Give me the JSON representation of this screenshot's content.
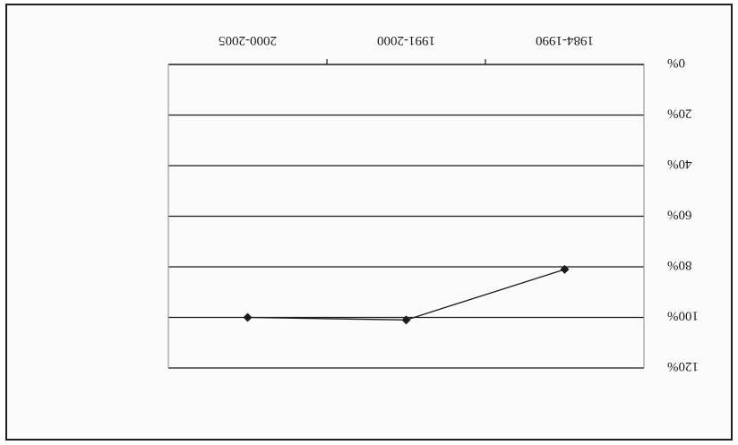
{
  "chart_data": {
    "type": "line",
    "categories": [
      "1984-1990",
      "1991-2000",
      "2000-2005"
    ],
    "series": [
      {
        "values": [
          81,
          101,
          100
        ]
      }
    ],
    "ylim": [
      0,
      120
    ],
    "y_ticks": [
      0,
      20,
      40,
      60,
      80,
      100,
      120
    ],
    "y_tick_labels": [
      "0%",
      "20%",
      "40%",
      "60%",
      "80%",
      "100%",
      "120%"
    ],
    "grid": true,
    "rotated_180": true
  },
  "colors": {
    "line": "#1a1a1a",
    "grid": "#1a1a1a",
    "frame": "#1f1f1f"
  }
}
